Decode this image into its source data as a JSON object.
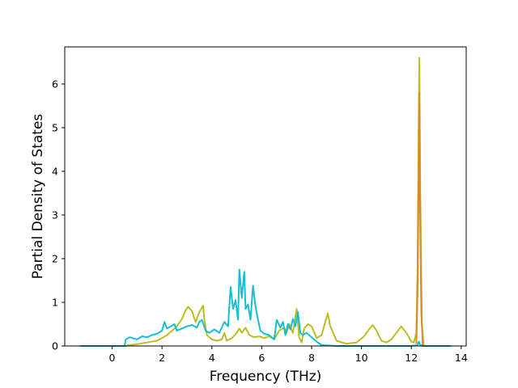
{
  "chart_data": {
    "type": "line",
    "title": "",
    "xlabel": "Frequency (THz)",
    "ylabel": "Partial Density of States",
    "xlim": [
      -1.9,
      14.2
    ],
    "ylim": [
      0,
      6.85
    ],
    "xticks": [
      0,
      2,
      4,
      6,
      8,
      10,
      12,
      14
    ],
    "yticks": [
      0,
      1,
      2,
      3,
      4,
      5,
      6
    ],
    "grid": false,
    "legend": "none",
    "colors": {
      "gold": "#bcbd22",
      "cyan": "#17becf",
      "orange": "#d98a2b"
    },
    "series": [
      {
        "color": "#bcbd22",
        "x": [
          -1.3,
          0.55,
          0.7,
          1.0,
          1.4,
          1.8,
          2.0,
          2.2,
          2.4,
          2.6,
          2.8,
          2.95,
          3.05,
          3.2,
          3.35,
          3.5,
          3.65,
          3.7,
          3.8,
          4.0,
          4.2,
          4.4,
          4.5,
          4.6,
          4.8,
          5.0,
          5.1,
          5.2,
          5.35,
          5.5,
          5.7,
          5.9,
          6.1,
          6.3,
          6.5,
          6.7,
          6.9,
          7.0,
          7.1,
          7.25,
          7.4,
          7.5,
          7.6,
          7.7,
          7.85,
          8.0,
          8.2,
          8.4,
          8.55,
          8.65,
          8.75,
          9.0,
          9.4,
          9.8,
          10.1,
          10.3,
          10.45,
          10.6,
          10.8,
          11.0,
          11.2,
          11.4,
          11.6,
          11.8,
          12.0,
          12.1,
          12.2,
          12.25,
          12.3,
          12.32,
          12.36,
          12.42,
          12.5,
          13.6
        ],
        "values": [
          0,
          0,
          0.02,
          0.04,
          0.08,
          0.12,
          0.18,
          0.25,
          0.35,
          0.45,
          0.62,
          0.82,
          0.9,
          0.8,
          0.55,
          0.78,
          0.92,
          0.6,
          0.25,
          0.15,
          0.12,
          0.15,
          0.3,
          0.12,
          0.18,
          0.3,
          0.4,
          0.3,
          0.42,
          0.25,
          0.2,
          0.22,
          0.18,
          0.22,
          0.15,
          0.35,
          0.42,
          0.3,
          0.5,
          0.3,
          0.85,
          0.2,
          0.08,
          0.4,
          0.5,
          0.45,
          0.18,
          0.25,
          0.55,
          0.75,
          0.45,
          0.12,
          0.05,
          0.08,
          0.22,
          0.38,
          0.48,
          0.35,
          0.12,
          0.08,
          0.15,
          0.3,
          0.45,
          0.3,
          0.1,
          0.08,
          0.3,
          1.8,
          5.5,
          6.6,
          3.5,
          0.5,
          0,
          0
        ]
      },
      {
        "color": "#17becf",
        "x": [
          -1.3,
          0.5,
          0.55,
          0.7,
          1.0,
          1.2,
          1.4,
          1.6,
          1.8,
          2.0,
          2.1,
          2.2,
          2.35,
          2.5,
          2.6,
          2.8,
          3.0,
          3.2,
          3.4,
          3.5,
          3.6,
          3.75,
          3.9,
          4.1,
          4.3,
          4.5,
          4.65,
          4.75,
          4.85,
          4.95,
          5.05,
          5.1,
          5.2,
          5.3,
          5.35,
          5.45,
          5.55,
          5.65,
          5.75,
          5.85,
          5.95,
          6.1,
          6.3,
          6.5,
          6.6,
          6.75,
          6.85,
          6.95,
          7.05,
          7.15,
          7.25,
          7.35,
          7.45,
          7.55,
          7.65,
          7.8,
          8.0,
          8.2,
          8.4,
          9.0,
          10.0,
          11.0,
          12.0,
          12.25,
          12.3,
          12.35,
          12.45,
          13.6
        ],
        "values": [
          0,
          0,
          0.15,
          0.2,
          0.15,
          0.22,
          0.2,
          0.25,
          0.28,
          0.35,
          0.55,
          0.4,
          0.45,
          0.5,
          0.35,
          0.4,
          0.45,
          0.48,
          0.42,
          0.55,
          0.6,
          0.35,
          0.3,
          0.38,
          0.3,
          0.55,
          0.45,
          1.35,
          0.85,
          1.05,
          0.6,
          1.75,
          1.1,
          1.7,
          0.85,
          0.95,
          0.6,
          1.38,
          0.9,
          0.6,
          0.35,
          0.28,
          0.25,
          0.15,
          0.6,
          0.42,
          0.55,
          0.25,
          0.5,
          0.38,
          0.62,
          0.45,
          0.78,
          0.3,
          0.25,
          0.3,
          0.2,
          0.1,
          0.02,
          0,
          0,
          0,
          0,
          0.02,
          0.1,
          0.03,
          0,
          0
        ]
      },
      {
        "color": "#d98a2b",
        "x": [
          12.2,
          12.26,
          12.3,
          12.32,
          12.35,
          12.4,
          12.46
        ],
        "values": [
          0.05,
          1.5,
          4.5,
          5.8,
          3.2,
          0.8,
          0
        ]
      }
    ]
  }
}
